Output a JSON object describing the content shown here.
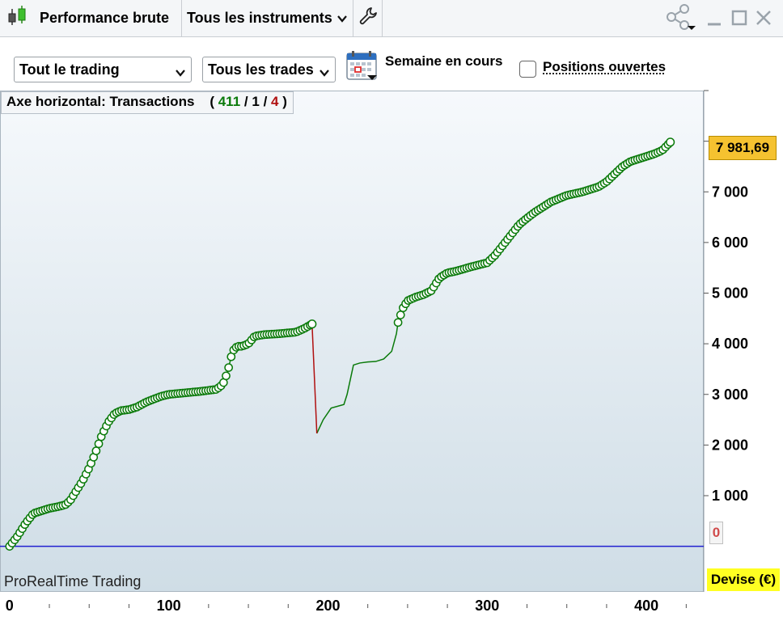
{
  "titlebar": {
    "app_title": "Performance brute",
    "instrument_menu": "Tous les instruments",
    "icons": {
      "app": "candlestick-icon",
      "tool": "wrench-icon",
      "share": "share-icon",
      "minimize": "minimize-icon",
      "maximize": "maximize-icon",
      "close": "close-icon"
    }
  },
  "toolbar": {
    "trading_select": "Tout le trading",
    "trades_select": "Tous les trades",
    "period_label": "Semaine en cours",
    "open_positions_label": "Positions ouvertes",
    "open_positions_checked": false
  },
  "chart": {
    "axis_label": "Axe horizontal:",
    "axis_value": "Transactions",
    "count_open": "(",
    "count_green": "411",
    "sep1": "/",
    "count_mid": "1",
    "sep2": "/",
    "count_red": "4",
    "count_close": ")",
    "last_value_label": "7 981,69",
    "zero_label": "0",
    "currency_label": "Devise (€)",
    "brand": "ProRealTime Trading",
    "colors": {
      "gain": "#0a7a0a",
      "loss": "#b01010",
      "baseline": "#2020d0",
      "marker_fill": "#ffffff",
      "last_badge": "#f5c230",
      "devise_badge": "#ffff22"
    }
  },
  "chart_data": {
    "type": "line",
    "xlabel": "",
    "ylabel": "",
    "xlim": [
      -6,
      436
    ],
    "ylim": [
      -900,
      9000
    ],
    "x_ticks": [
      0,
      100,
      200,
      300,
      400
    ],
    "x_tick_labels": [
      "0",
      "100",
      "200",
      "300",
      "400"
    ],
    "y_ticks": [
      1000,
      2000,
      3000,
      4000,
      5000,
      6000,
      7000
    ],
    "y_tick_labels": [
      "1 000",
      "2 000",
      "3 000",
      "4 000",
      "5 000",
      "6 000",
      "7 000"
    ],
    "baseline": 0,
    "last_value": 7981.69,
    "marked_segments": [
      {
        "name": "",
        "x": [
          0,
          5,
          10,
          15,
          20,
          25,
          30,
          35,
          38,
          42,
          46,
          50,
          54,
          58,
          62,
          66,
          70,
          75,
          80,
          86,
          90,
          95,
          100,
          110,
          120,
          125,
          130,
          134,
          137,
          140,
          143,
          146,
          150,
          154,
          160,
          170,
          180,
          185,
          190
        ],
        "y": [
          0,
          200,
          450,
          650,
          700,
          750,
          780,
          820,
          900,
          1100,
          1300,
          1550,
          1850,
          2200,
          2450,
          2620,
          2680,
          2700,
          2750,
          2850,
          2900,
          2960,
          3000,
          3030,
          3060,
          3080,
          3100,
          3200,
          3450,
          3850,
          3950,
          3950,
          4000,
          4150,
          4180,
          4200,
          4230,
          4300,
          4390
        ]
      },
      {
        "name": "",
        "x": [
          244,
          247,
          250,
          255,
          260,
          265,
          270,
          275,
          280,
          290,
          300,
          305,
          310,
          315,
          320,
          325,
          330,
          340,
          350,
          360,
          365,
          370,
          375,
          380,
          385,
          390,
          395,
          400,
          405,
          410,
          415
        ],
        "y": [
          4420,
          4700,
          4850,
          4920,
          4970,
          5050,
          5300,
          5400,
          5430,
          5520,
          5600,
          5750,
          5950,
          6150,
          6350,
          6480,
          6600,
          6800,
          6930,
          7000,
          7050,
          7100,
          7200,
          7350,
          7500,
          7600,
          7650,
          7700,
          7750,
          7820,
          7981.69
        ]
      }
    ],
    "loss_segment": {
      "x": [
        190,
        193
      ],
      "y": [
        4390,
        2230
      ]
    },
    "unmarked_segment": {
      "name": "",
      "x": [
        193,
        197,
        202,
        210,
        212,
        216,
        220,
        225,
        230,
        235,
        240,
        243,
        244
      ],
      "y": [
        2230,
        2500,
        2730,
        2800,
        3000,
        3580,
        3620,
        3640,
        3650,
        3700,
        3850,
        4200,
        4420
      ]
    }
  }
}
